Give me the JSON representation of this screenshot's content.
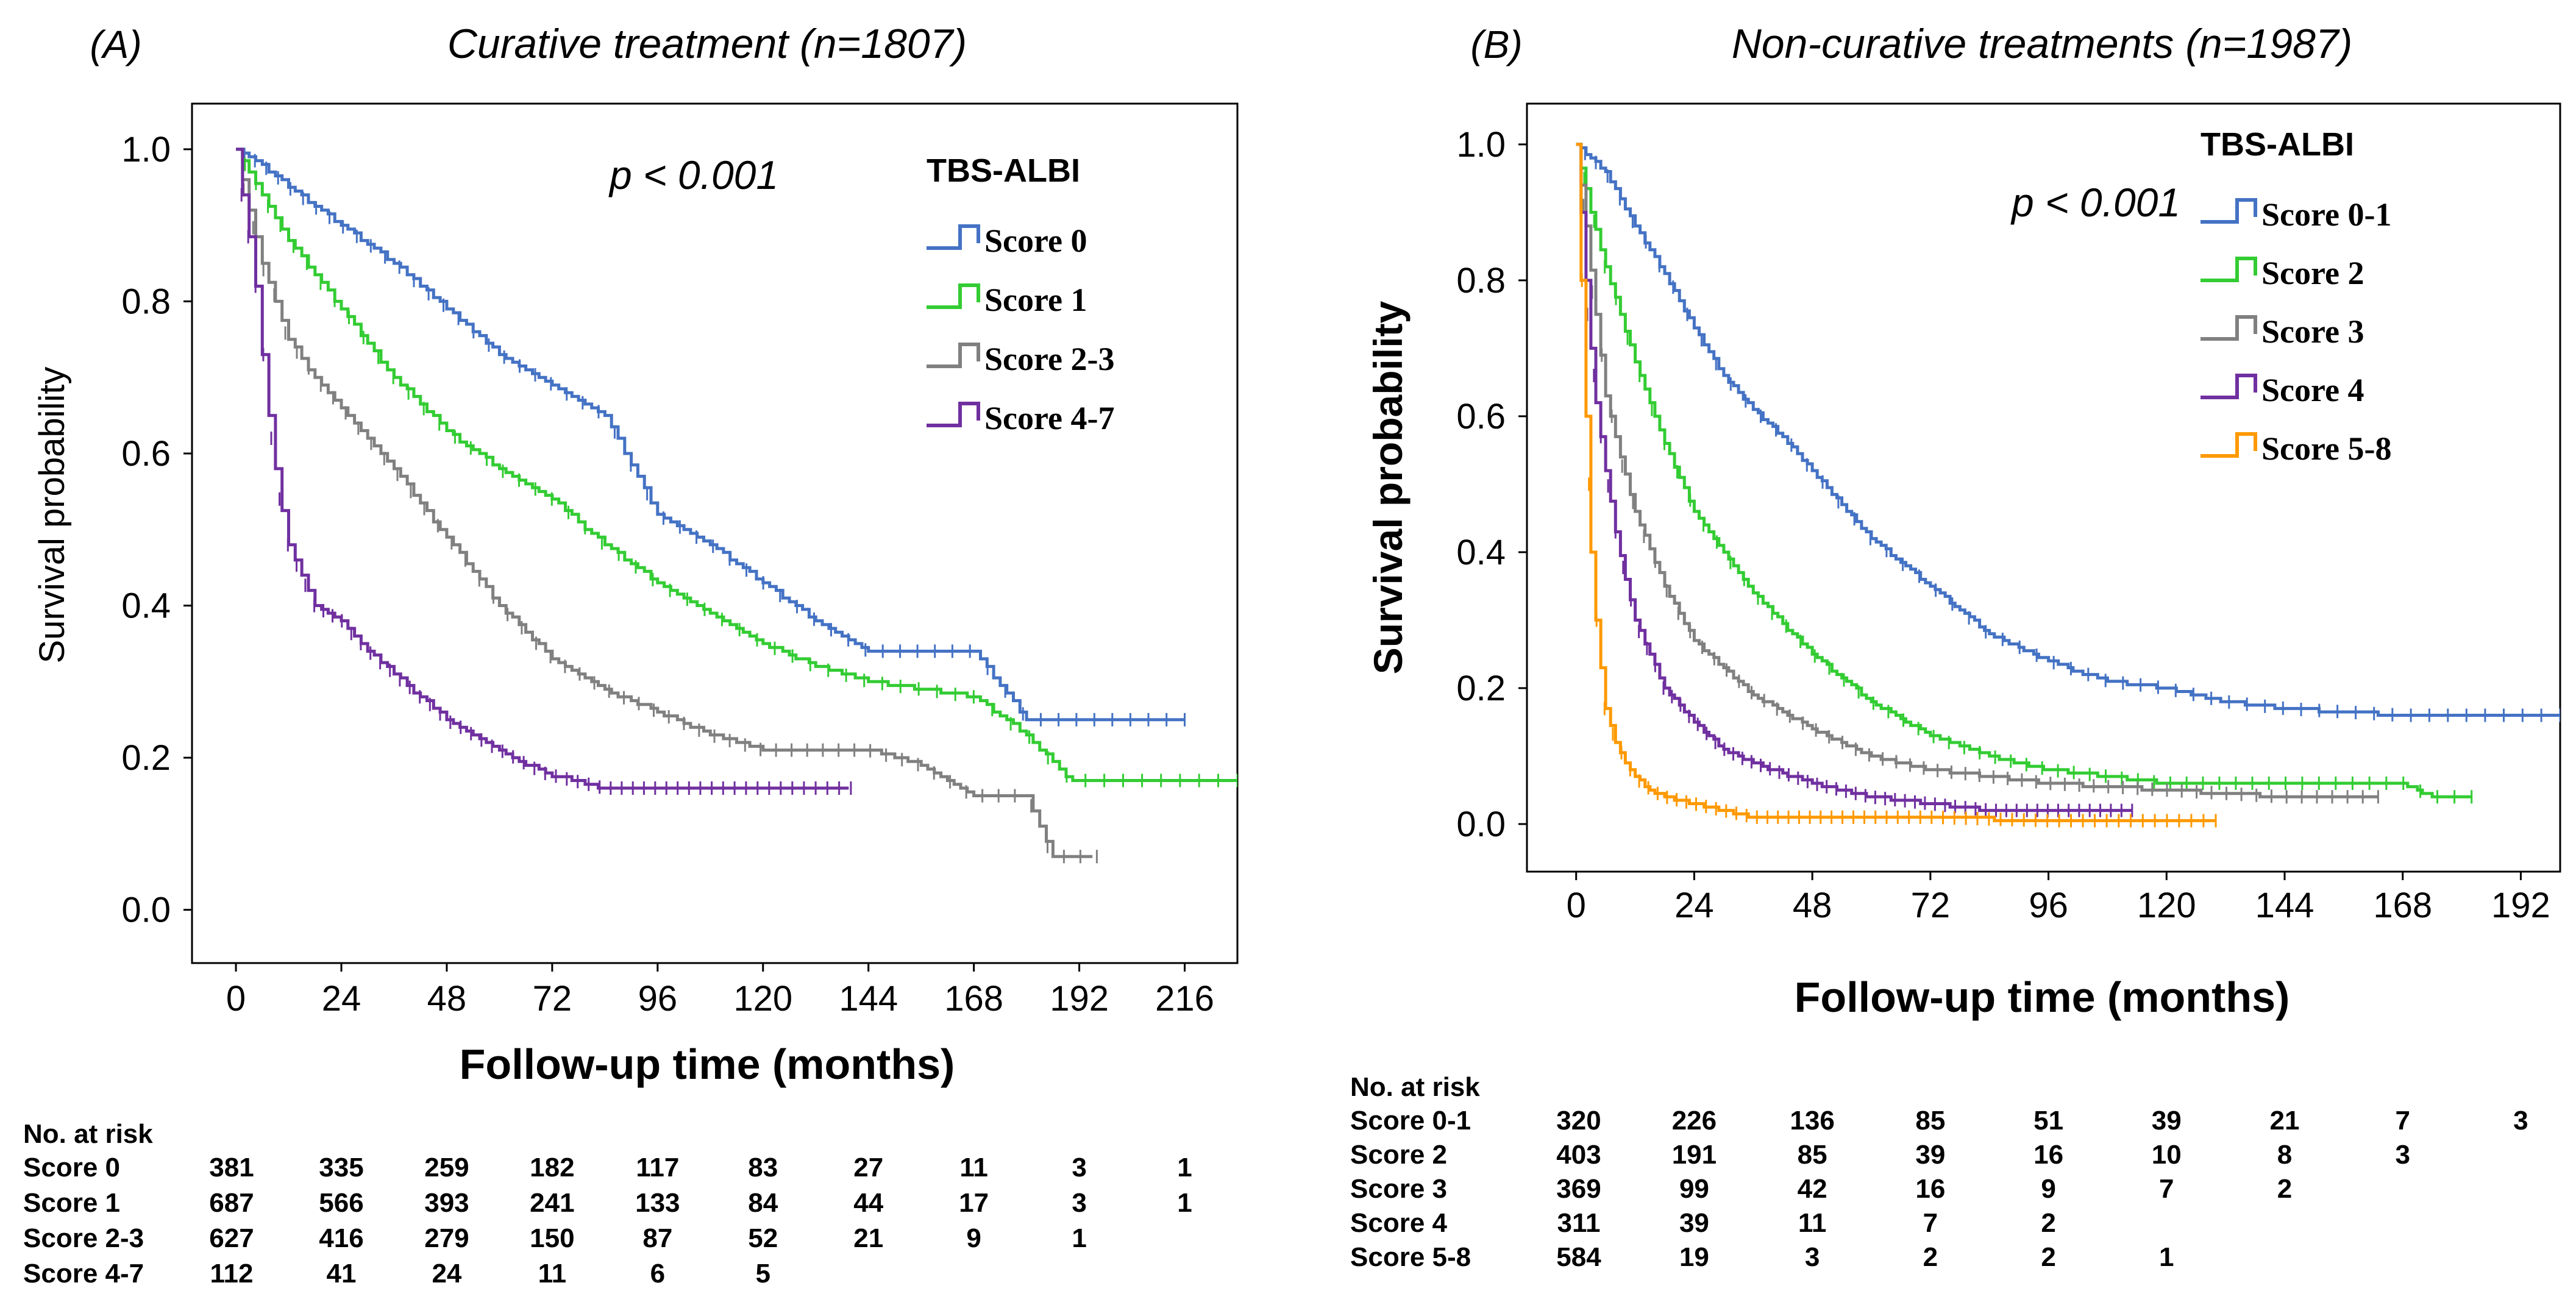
{
  "chart_data": [
    {
      "type": "line",
      "panel_label": "(A)",
      "title": "Curative treatment (n=1807)",
      "annotation": "p < 0.001",
      "xlabel": "Follow-up time (months)",
      "ylabel": "Survival probability",
      "xlim": [
        -10,
        228
      ],
      "ylim": [
        -0.07,
        1.06
      ],
      "xticks": [
        0,
        24,
        48,
        72,
        96,
        120,
        144,
        168,
        192,
        216
      ],
      "yticks": [
        "0.0",
        "0.2",
        "0.4",
        "0.6",
        "0.8",
        "1.0"
      ],
      "legend_title": "TBS-ALBI",
      "legend_position": "top-right",
      "series": [
        {
          "name": "Score 0",
          "color": "#4472C4",
          "x": [
            0,
            6,
            12,
            24,
            36,
            48,
            60,
            72,
            84,
            96,
            108,
            120,
            132,
            144,
            168,
            180,
            216
          ],
          "y": [
            1.0,
            0.98,
            0.95,
            0.9,
            0.85,
            0.79,
            0.73,
            0.69,
            0.65,
            0.52,
            0.48,
            0.43,
            0.38,
            0.34,
            0.34,
            0.25,
            0.25
          ]
        },
        {
          "name": "Score 1",
          "color": "#33CC33",
          "x": [
            0,
            6,
            12,
            24,
            36,
            48,
            60,
            72,
            84,
            96,
            108,
            120,
            132,
            144,
            168,
            180,
            190,
            228
          ],
          "y": [
            1.0,
            0.94,
            0.88,
            0.79,
            0.7,
            0.63,
            0.58,
            0.54,
            0.48,
            0.43,
            0.39,
            0.35,
            0.32,
            0.3,
            0.28,
            0.23,
            0.17,
            0.17
          ]
        },
        {
          "name": "Score 2-3",
          "color": "#808080",
          "x": [
            0,
            3,
            6,
            12,
            18,
            24,
            36,
            48,
            60,
            72,
            84,
            96,
            108,
            120,
            144,
            156,
            168,
            180,
            186,
            196
          ],
          "y": [
            1.0,
            0.92,
            0.85,
            0.75,
            0.7,
            0.66,
            0.58,
            0.49,
            0.4,
            0.33,
            0.29,
            0.26,
            0.23,
            0.21,
            0.21,
            0.19,
            0.15,
            0.15,
            0.07,
            0.07
          ]
        },
        {
          "name": "Score 4-7",
          "color": "#7030A0",
          "x": [
            0,
            2,
            4,
            6,
            8,
            10,
            12,
            15,
            18,
            24,
            30,
            36,
            48,
            60,
            70,
            84,
            96,
            120,
            140
          ],
          "y": [
            1.0,
            0.92,
            0.85,
            0.73,
            0.62,
            0.54,
            0.48,
            0.44,
            0.4,
            0.38,
            0.34,
            0.31,
            0.25,
            0.21,
            0.18,
            0.16,
            0.16,
            0.16,
            0.16
          ]
        }
      ],
      "risk_table": {
        "header": "No. at risk",
        "rows": [
          {
            "label": "Score 0",
            "values": [
              "381",
              "335",
              "259",
              "182",
              "117",
              "83",
              "27",
              "11",
              "3",
              "1"
            ]
          },
          {
            "label": "Score 1",
            "values": [
              "687",
              "566",
              "393",
              "241",
              "133",
              "84",
              "44",
              "17",
              "3",
              "1"
            ]
          },
          {
            "label": "Score 2-3",
            "values": [
              "627",
              "416",
              "279",
              "150",
              "87",
              "52",
              "21",
              "9",
              "1",
              ""
            ]
          },
          {
            "label": "Score 4-7",
            "values": [
              "112",
              "41",
              "24",
              "11",
              "6",
              "5",
              "",
              "",
              "",
              ""
            ]
          }
        ]
      }
    },
    {
      "type": "line",
      "panel_label": "(B)",
      "title": "Non-curative treatments (n=1987)",
      "annotation": "p < 0.001",
      "xlabel": "Follow-up time (months)",
      "ylabel": "Survival probability",
      "xlim": [
        -10,
        200
      ],
      "ylim": [
        -0.07,
        1.06
      ],
      "xticks": [
        0,
        24,
        48,
        72,
        96,
        120,
        144,
        168,
        192
      ],
      "yticks": [
        "0.0",
        "0.2",
        "0.4",
        "0.6",
        "0.8",
        "1.0"
      ],
      "legend_title": "TBS-ALBI",
      "legend_position": "top-right",
      "series": [
        {
          "name": "Score 0-1",
          "color": "#4472C4",
          "x": [
            0,
            6,
            12,
            18,
            24,
            30,
            36,
            42,
            48,
            60,
            72,
            84,
            96,
            108,
            120,
            132,
            144,
            168,
            200
          ],
          "y": [
            1.0,
            0.96,
            0.88,
            0.81,
            0.73,
            0.66,
            0.61,
            0.57,
            0.52,
            0.42,
            0.35,
            0.28,
            0.24,
            0.21,
            0.2,
            0.18,
            0.17,
            0.16,
            0.16
          ]
        },
        {
          "name": "Score 2",
          "color": "#33CC33",
          "x": [
            0,
            3,
            6,
            12,
            18,
            24,
            30,
            36,
            48,
            60,
            72,
            84,
            96,
            108,
            120,
            144,
            168,
            174,
            182
          ],
          "y": [
            1.0,
            0.9,
            0.82,
            0.68,
            0.56,
            0.46,
            0.4,
            0.34,
            0.25,
            0.18,
            0.13,
            0.1,
            0.08,
            0.07,
            0.06,
            0.06,
            0.06,
            0.04,
            0.04
          ]
        },
        {
          "name": "Score 3",
          "color": "#808080",
          "x": [
            0,
            2,
            4,
            6,
            9,
            12,
            18,
            24,
            36,
            48,
            60,
            72,
            84,
            96,
            120,
            144,
            163
          ],
          "y": [
            1.0,
            0.88,
            0.75,
            0.63,
            0.54,
            0.46,
            0.35,
            0.27,
            0.19,
            0.14,
            0.1,
            0.08,
            0.07,
            0.06,
            0.05,
            0.04,
            0.04
          ]
        },
        {
          "name": "Score 4",
          "color": "#7030A0",
          "x": [
            0,
            1,
            2,
            3,
            4,
            6,
            8,
            10,
            12,
            15,
            18,
            24,
            30,
            36,
            48,
            60,
            72,
            84,
            96,
            113
          ],
          "y": [
            1.0,
            0.9,
            0.8,
            0.7,
            0.62,
            0.52,
            0.43,
            0.36,
            0.3,
            0.25,
            0.2,
            0.15,
            0.11,
            0.09,
            0.06,
            0.04,
            0.03,
            0.02,
            0.02,
            0.02
          ]
        },
        {
          "name": "Score 5-8",
          "color": "#FF9900",
          "x": [
            0,
            1,
            2,
            3,
            4,
            5,
            6,
            8,
            10,
            12,
            15,
            18,
            24,
            30,
            36,
            48,
            72,
            96,
            130
          ],
          "y": [
            1.0,
            0.8,
            0.6,
            0.4,
            0.3,
            0.23,
            0.17,
            0.12,
            0.09,
            0.07,
            0.05,
            0.04,
            0.03,
            0.02,
            0.01,
            0.01,
            0.01,
            0.005,
            0.005
          ]
        }
      ],
      "risk_table": {
        "header": "No. at risk",
        "rows": [
          {
            "label": "Score 0-1",
            "values": [
              "320",
              "226",
              "136",
              "85",
              "51",
              "39",
              "21",
              "7",
              "3"
            ]
          },
          {
            "label": "Score 2",
            "values": [
              "403",
              "191",
              "85",
              "39",
              "16",
              "10",
              "8",
              "3",
              ""
            ]
          },
          {
            "label": "Score 3",
            "values": [
              "369",
              "99",
              "42",
              "16",
              "9",
              "7",
              "2",
              "",
              ""
            ]
          },
          {
            "label": "Score 4",
            "values": [
              "311",
              "39",
              "11",
              "7",
              "2",
              "",
              "",
              "",
              ""
            ]
          },
          {
            "label": "Score 5-8",
            "values": [
              "584",
              "19",
              "3",
              "2",
              "2",
              "1",
              "",
              "",
              ""
            ]
          }
        ]
      }
    }
  ]
}
